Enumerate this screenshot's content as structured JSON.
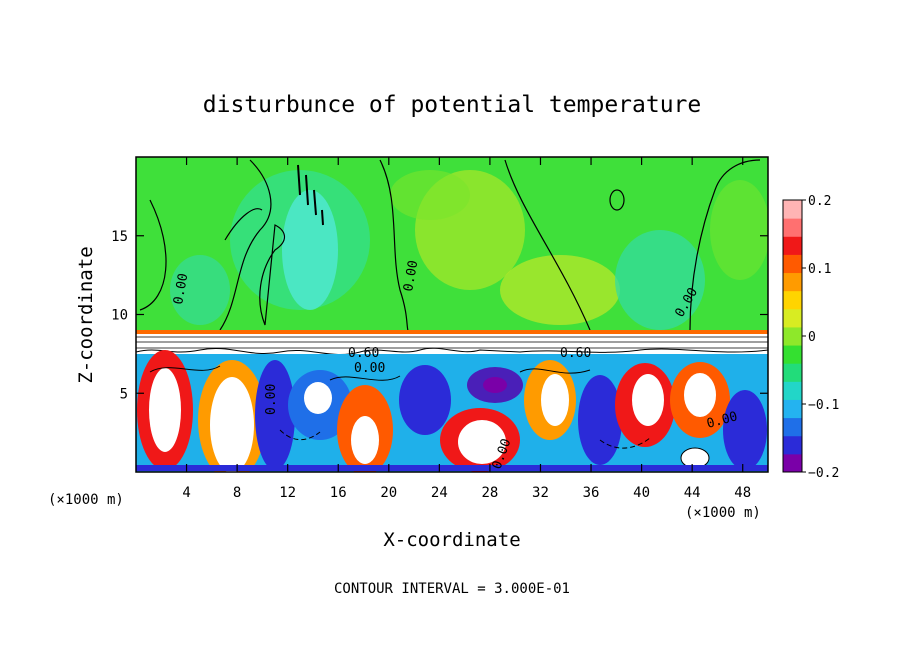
{
  "chart_data": {
    "type": "heatmap",
    "title": "disturbunce of potential temperature",
    "xlabel": "X-coordinate",
    "ylabel": "Z-coordinate",
    "x_unit": "(×1000 m)",
    "xlim": [
      0,
      50
    ],
    "ylim": [
      0,
      20
    ],
    "x_ticks": [
      4,
      8,
      12,
      16,
      20,
      24,
      28,
      32,
      36,
      40,
      44,
      48
    ],
    "y_ticks": [
      5,
      10,
      15
    ],
    "colorbar": {
      "min": -0.2,
      "max": 0.2,
      "ticks": [
        0.2,
        0.1,
        0,
        -0.1,
        -0.2
      ],
      "tick_labels": [
        "0.2",
        "0.1",
        "0",
        "−0.1",
        "−0.2"
      ],
      "colors": [
        "#7a00a8",
        "#2b2bd8",
        "#1f6fe8",
        "#24b3f0",
        "#22d6c8",
        "#22dc7a",
        "#34e030",
        "#8ee82a",
        "#d8ec22",
        "#ffd400",
        "#ff9b00",
        "#ff5a00",
        "#f01818",
        "#ff7070",
        "#ffb4b4"
      ]
    },
    "contour_labels": [
      "0.00",
      "0.00",
      "0.00",
      "0.60",
      "0.00",
      "0.60",
      "0.00",
      "0.00",
      "0.00"
    ],
    "footer": "CONTOUR INTERVAL = 3.000E-01",
    "grid": false
  }
}
